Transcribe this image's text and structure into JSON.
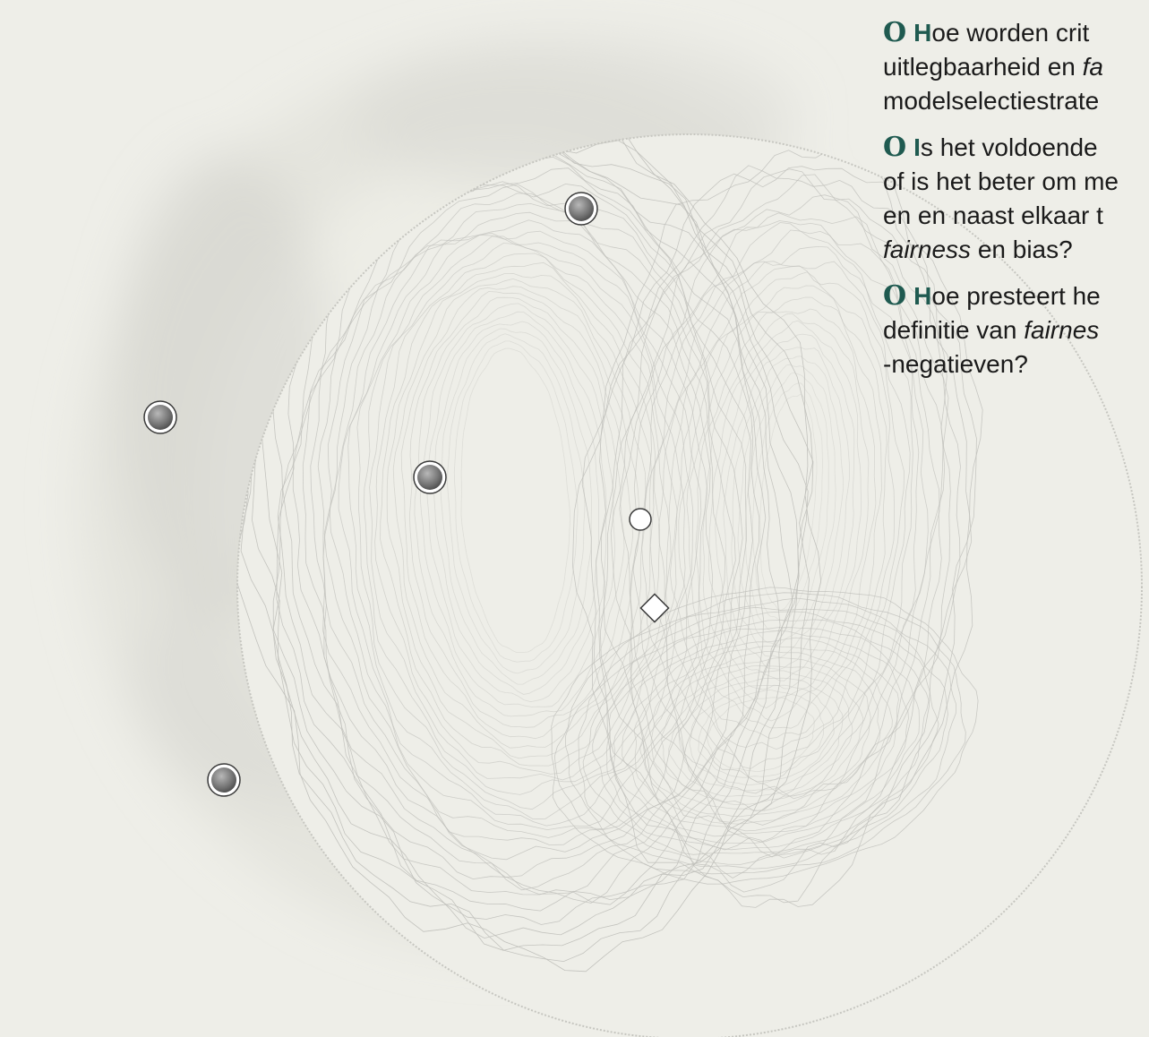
{
  "accent_color": "#1f5a50",
  "markers": {
    "gray_circles": [
      {
        "name": "marker-top"
      },
      {
        "name": "marker-left"
      },
      {
        "name": "marker-center-left"
      },
      {
        "name": "marker-bottom-left"
      }
    ],
    "white_circle": {
      "name": "marker-white"
    },
    "white_diamond": {
      "name": "marker-diamond"
    }
  },
  "questions": [
    {
      "mark": "O",
      "initial": "H",
      "line1_rest": "oe worden crit",
      "line2_a": "uitlegbaarheid en ",
      "line2_em": "fa",
      "line3": "modelselectiestrate"
    },
    {
      "mark": "O",
      "initial": "I",
      "line1_rest": "s het voldoende",
      "line2": "of is het beter om me",
      "line3": "en en naast elkaar t",
      "line4_em": "fairness",
      "line4_rest": " en bias?"
    },
    {
      "mark": "O",
      "initial": "H",
      "line1_rest": "oe presteert he",
      "line2_a": "definitie van ",
      "line2_em": "fairnes",
      "line3": "-negatieven?"
    }
  ]
}
